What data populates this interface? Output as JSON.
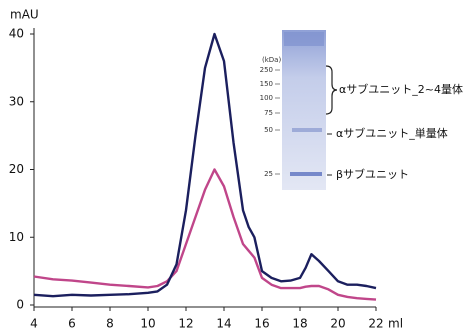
{
  "chart_data": {
    "type": "line",
    "y_label": "mAU",
    "x_label": "ml",
    "x": [
      4,
      5,
      6,
      7,
      8,
      9,
      10,
      10.5,
      11,
      11.5,
      12,
      12.5,
      13,
      13.5,
      14,
      14.5,
      15,
      15.3,
      15.6,
      16,
      16.5,
      17,
      17.5,
      18,
      18.3,
      18.6,
      19,
      19.5,
      20,
      20.5,
      21,
      21.5,
      22
    ],
    "series": [
      {
        "color": "#1b1f5e",
        "values": [
          1.5,
          1.3,
          1.5,
          1.4,
          1.5,
          1.6,
          1.8,
          2,
          3,
          6,
          14,
          25,
          35,
          40,
          36,
          24,
          14,
          11.5,
          10,
          5,
          4,
          3.5,
          3.6,
          4,
          5.5,
          7.5,
          6.5,
          5,
          3.5,
          3,
          3,
          2.8,
          2.5
        ]
      },
      {
        "color": "#c0468a",
        "values": [
          4.2,
          3.8,
          3.6,
          3.3,
          3,
          2.8,
          2.6,
          2.8,
          3.5,
          5,
          9,
          13,
          17,
          20,
          17.5,
          13,
          9,
          8,
          7,
          4,
          3,
          2.5,
          2.5,
          2.5,
          2.7,
          2.8,
          2.8,
          2.3,
          1.5,
          1.2,
          1,
          0.9,
          0.8
        ]
      }
    ],
    "xlim": [
      4,
      22
    ],
    "xticks": [
      4,
      6,
      8,
      10,
      12,
      14,
      16,
      18,
      20,
      22
    ],
    "ylim": [
      0,
      40
    ],
    "yticks": [
      0,
      10,
      20,
      30,
      40
    ],
    "inset": {
      "kda_label": "(kDa)",
      "markers": [
        "250",
        "150",
        "100",
        "75",
        "50",
        "25"
      ],
      "annotations": [
        "αサブユニット_2~4量体",
        "αサブユニット_単量体",
        "βサブユニット"
      ]
    }
  }
}
